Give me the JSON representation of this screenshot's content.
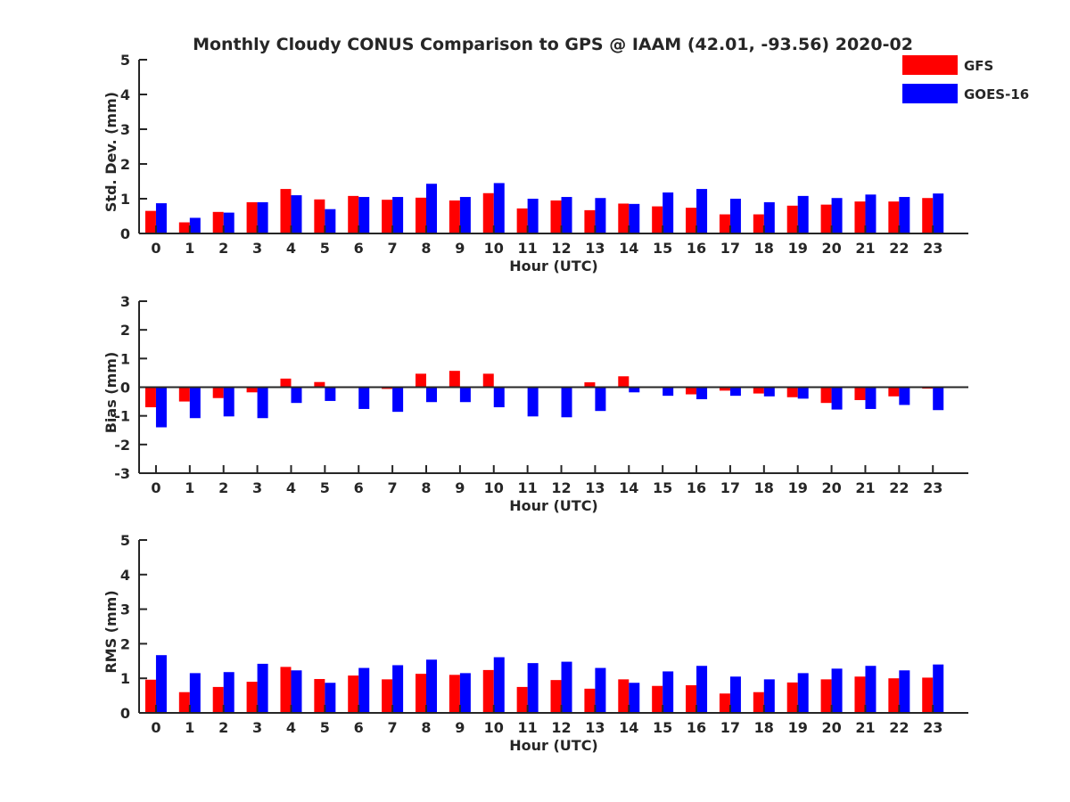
{
  "figure": {
    "title": "Monthly Cloudy CONUS Comparison to GPS @ IAAM (42.01, -93.56) 2020-02"
  },
  "legend": {
    "entries": [
      {
        "name": "GFS",
        "color": "#ff0000"
      },
      {
        "name": "GOES-16",
        "color": "#0000ff"
      }
    ],
    "placement": "top-right"
  },
  "chart_data": [
    {
      "type": "bar",
      "ylabel": "Std. Dev. (mm)",
      "xlabel": "Hour (UTC)",
      "ylim": [
        0,
        5
      ],
      "yticks": [
        "0",
        "1",
        "2",
        "3",
        "4",
        "5"
      ],
      "categories": [
        "0",
        "1",
        "2",
        "3",
        "4",
        "5",
        "6",
        "7",
        "8",
        "9",
        "10",
        "11",
        "12",
        "13",
        "14",
        "15",
        "16",
        "17",
        "18",
        "19",
        "20",
        "21",
        "22",
        "23"
      ],
      "series": [
        {
          "name": "GFS",
          "color": "#ff0000",
          "values": [
            0.65,
            0.32,
            0.62,
            0.9,
            1.28,
            0.98,
            1.08,
            0.97,
            1.03,
            0.95,
            1.16,
            0.72,
            0.95,
            0.67,
            0.86,
            0.78,
            0.74,
            0.55,
            0.55,
            0.8,
            0.83,
            0.92,
            0.92,
            1.02
          ]
        },
        {
          "name": "GOES-16",
          "color": "#0000ff",
          "values": [
            0.87,
            0.45,
            0.6,
            0.9,
            1.1,
            0.7,
            1.05,
            1.05,
            1.43,
            1.05,
            1.45,
            1.0,
            1.05,
            1.02,
            0.85,
            1.18,
            1.28,
            1.0,
            0.9,
            1.08,
            1.02,
            1.12,
            1.05,
            1.15
          ]
        }
      ]
    },
    {
      "type": "bar",
      "ylabel": "Bias (mm)",
      "xlabel": "Hour (UTC)",
      "ylim": [
        -3,
        3
      ],
      "yticks": [
        "-3",
        "-2",
        "-1",
        "0",
        "1",
        "2",
        "3"
      ],
      "zero_line": true,
      "categories": [
        "0",
        "1",
        "2",
        "3",
        "4",
        "5",
        "6",
        "7",
        "8",
        "9",
        "10",
        "11",
        "12",
        "13",
        "14",
        "15",
        "16",
        "17",
        "18",
        "19",
        "20",
        "21",
        "22",
        "23"
      ],
      "series": [
        {
          "name": "GFS",
          "color": "#ff0000",
          "values": [
            -0.7,
            -0.5,
            -0.38,
            -0.18,
            0.3,
            0.18,
            0.0,
            -0.06,
            0.47,
            0.57,
            0.47,
            0.02,
            0.02,
            0.17,
            0.38,
            0.03,
            -0.25,
            -0.12,
            -0.22,
            -0.35,
            -0.55,
            -0.45,
            -0.32,
            -0.05
          ]
        },
        {
          "name": "GOES-16",
          "color": "#0000ff",
          "values": [
            -1.4,
            -1.08,
            -1.02,
            -1.08,
            -0.55,
            -0.48,
            -0.76,
            -0.86,
            -0.52,
            -0.52,
            -0.7,
            -1.02,
            -1.05,
            -0.83,
            -0.18,
            -0.3,
            -0.42,
            -0.3,
            -0.32,
            -0.4,
            -0.78,
            -0.76,
            -0.62,
            -0.8
          ]
        }
      ]
    },
    {
      "type": "bar",
      "ylabel": "RMS (mm)",
      "xlabel": "Hour (UTC)",
      "ylim": [
        0,
        5
      ],
      "yticks": [
        "0",
        "1",
        "2",
        "3",
        "4",
        "5"
      ],
      "categories": [
        "0",
        "1",
        "2",
        "3",
        "4",
        "5",
        "6",
        "7",
        "8",
        "9",
        "10",
        "11",
        "12",
        "13",
        "14",
        "15",
        "16",
        "17",
        "18",
        "19",
        "20",
        "21",
        "22",
        "23"
      ],
      "series": [
        {
          "name": "GFS",
          "color": "#ff0000",
          "values": [
            0.96,
            0.6,
            0.75,
            0.9,
            1.33,
            0.98,
            1.08,
            0.97,
            1.13,
            1.1,
            1.24,
            0.75,
            0.95,
            0.7,
            0.97,
            0.78,
            0.8,
            0.56,
            0.6,
            0.88,
            0.97,
            1.05,
            1.0,
            1.02
          ]
        },
        {
          "name": "GOES-16",
          "color": "#0000ff",
          "values": [
            1.67,
            1.15,
            1.18,
            1.42,
            1.23,
            0.87,
            1.3,
            1.38,
            1.54,
            1.15,
            1.61,
            1.44,
            1.48,
            1.3,
            0.87,
            1.2,
            1.36,
            1.05,
            0.97,
            1.15,
            1.28,
            1.36,
            1.23,
            1.4
          ]
        }
      ]
    }
  ]
}
